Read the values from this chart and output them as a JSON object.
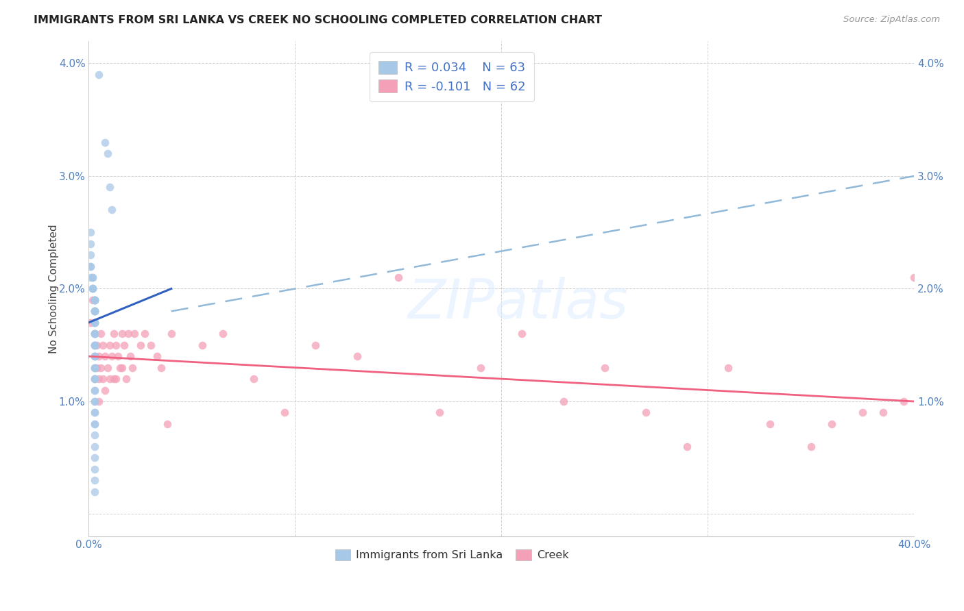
{
  "title": "IMMIGRANTS FROM SRI LANKA VS CREEK NO SCHOOLING COMPLETED CORRELATION CHART",
  "source": "Source: ZipAtlas.com",
  "ylabel": "No Schooling Completed",
  "xlim": [
    0.0,
    0.4
  ],
  "ylim": [
    -0.002,
    0.042
  ],
  "plot_ylim": [
    -0.002,
    0.042
  ],
  "xticks": [
    0.0,
    0.1,
    0.2,
    0.3,
    0.4
  ],
  "yticks": [
    0.0,
    0.01,
    0.02,
    0.03,
    0.04
  ],
  "xtick_labels": [
    "0.0%",
    "",
    "",
    "",
    "40.0%"
  ],
  "ytick_labels": [
    "",
    "1.0%",
    "2.0%",
    "3.0%",
    "4.0%"
  ],
  "sri_lanka_color": "#a8c8e8",
  "creek_color": "#f4a0b8",
  "sri_lanka_line_color": "#3060c0",
  "creek_line_color": "#f06080",
  "dash_line_color": "#90b8d8",
  "R_sri": 0.034,
  "N_sri": 63,
  "R_creek": -0.101,
  "N_creek": 62,
  "legend_label_sri": "Immigrants from Sri Lanka",
  "legend_label_creek": "Creek",
  "watermark": "ZIPatlas",
  "sri_lanka_x": [
    0.005,
    0.008,
    0.009,
    0.01,
    0.011,
    0.001,
    0.001,
    0.001,
    0.001,
    0.001,
    0.001,
    0.002,
    0.002,
    0.002,
    0.002,
    0.002,
    0.002,
    0.003,
    0.003,
    0.003,
    0.003,
    0.003,
    0.003,
    0.003,
    0.003,
    0.003,
    0.003,
    0.003,
    0.003,
    0.003,
    0.003,
    0.003,
    0.003,
    0.003,
    0.003,
    0.003,
    0.003,
    0.003,
    0.003,
    0.003,
    0.003,
    0.003,
    0.003,
    0.003,
    0.003,
    0.003,
    0.003,
    0.003,
    0.003,
    0.003,
    0.003,
    0.003,
    0.003,
    0.003,
    0.003,
    0.003,
    0.003,
    0.003,
    0.003,
    0.003,
    0.003,
    0.003,
    0.003
  ],
  "sri_lanka_y": [
    0.039,
    0.033,
    0.032,
    0.029,
    0.027,
    0.025,
    0.024,
    0.023,
    0.022,
    0.022,
    0.021,
    0.021,
    0.021,
    0.02,
    0.02,
    0.02,
    0.02,
    0.019,
    0.019,
    0.019,
    0.019,
    0.019,
    0.019,
    0.018,
    0.018,
    0.018,
    0.018,
    0.018,
    0.017,
    0.017,
    0.017,
    0.017,
    0.016,
    0.016,
    0.016,
    0.016,
    0.015,
    0.015,
    0.015,
    0.015,
    0.014,
    0.014,
    0.014,
    0.013,
    0.013,
    0.013,
    0.012,
    0.012,
    0.012,
    0.011,
    0.011,
    0.01,
    0.01,
    0.009,
    0.009,
    0.008,
    0.008,
    0.007,
    0.006,
    0.005,
    0.004,
    0.003,
    0.002
  ],
  "creek_x": [
    0.001,
    0.002,
    0.003,
    0.003,
    0.004,
    0.004,
    0.005,
    0.005,
    0.005,
    0.006,
    0.006,
    0.007,
    0.007,
    0.008,
    0.008,
    0.009,
    0.01,
    0.01,
    0.011,
    0.012,
    0.012,
    0.013,
    0.013,
    0.014,
    0.015,
    0.016,
    0.016,
    0.017,
    0.018,
    0.019,
    0.02,
    0.021,
    0.022,
    0.025,
    0.027,
    0.03,
    0.033,
    0.035,
    0.038,
    0.04,
    0.055,
    0.065,
    0.08,
    0.095,
    0.11,
    0.13,
    0.15,
    0.17,
    0.19,
    0.21,
    0.23,
    0.25,
    0.27,
    0.29,
    0.31,
    0.33,
    0.35,
    0.36,
    0.375,
    0.385,
    0.395,
    0.4
  ],
  "creek_y": [
    0.017,
    0.019,
    0.016,
    0.014,
    0.015,
    0.013,
    0.014,
    0.012,
    0.01,
    0.016,
    0.013,
    0.015,
    0.012,
    0.014,
    0.011,
    0.013,
    0.015,
    0.012,
    0.014,
    0.016,
    0.012,
    0.015,
    0.012,
    0.014,
    0.013,
    0.016,
    0.013,
    0.015,
    0.012,
    0.016,
    0.014,
    0.013,
    0.016,
    0.015,
    0.016,
    0.015,
    0.014,
    0.013,
    0.008,
    0.016,
    0.015,
    0.016,
    0.012,
    0.009,
    0.015,
    0.014,
    0.021,
    0.009,
    0.013,
    0.016,
    0.01,
    0.013,
    0.009,
    0.006,
    0.013,
    0.008,
    0.006,
    0.008,
    0.009,
    0.009,
    0.01,
    0.021
  ],
  "sri_line_x": [
    0.0,
    0.04
  ],
  "sri_line_y": [
    0.017,
    0.02
  ],
  "creek_line_x": [
    0.0,
    0.4
  ],
  "creek_line_y": [
    0.014,
    0.01
  ],
  "dash_line_x": [
    0.04,
    0.4
  ],
  "dash_line_y": [
    0.018,
    0.03
  ]
}
